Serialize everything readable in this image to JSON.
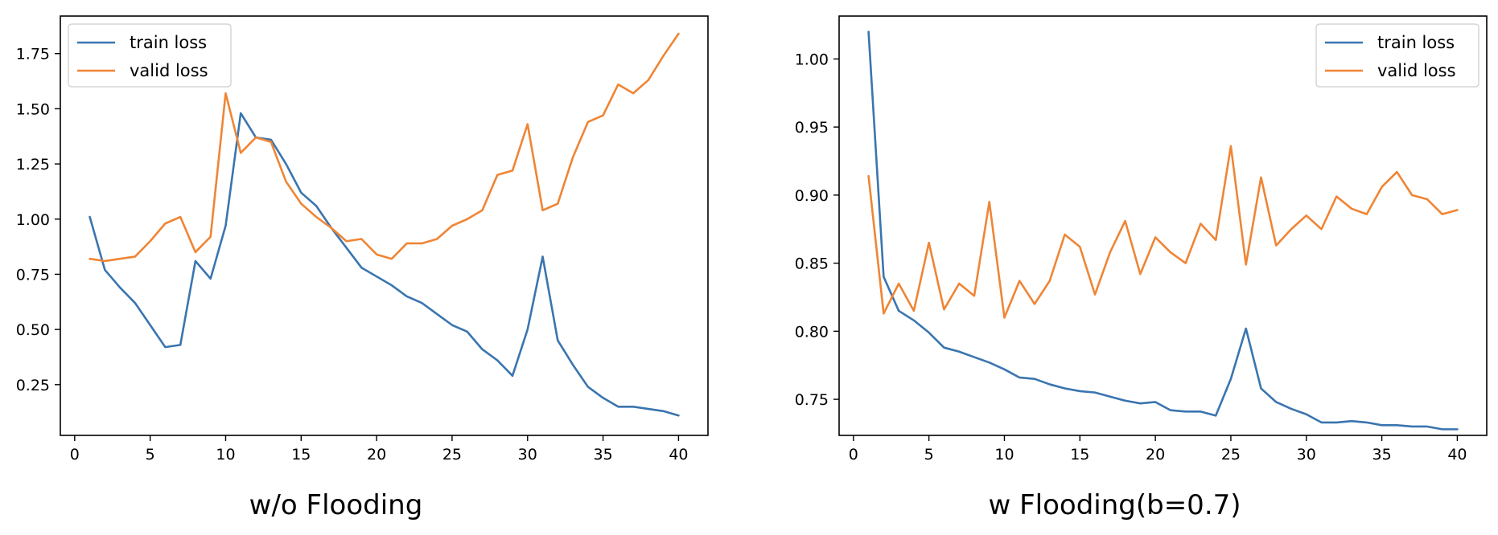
{
  "chart_data": [
    {
      "type": "line",
      "caption": "w/o Flooding",
      "x": [
        1,
        2,
        3,
        4,
        5,
        6,
        7,
        8,
        9,
        10,
        11,
        12,
        13,
        14,
        15,
        16,
        17,
        18,
        19,
        20,
        21,
        22,
        23,
        24,
        25,
        26,
        27,
        28,
        29,
        30,
        31,
        32,
        33,
        34,
        35,
        36,
        37,
        38,
        39,
        40
      ],
      "series": [
        {
          "name": "train loss",
          "color": "#3a75af",
          "values": [
            1.01,
            0.77,
            0.69,
            0.62,
            0.52,
            0.42,
            0.43,
            0.81,
            0.73,
            0.97,
            1.48,
            1.37,
            1.36,
            1.25,
            1.12,
            1.06,
            0.96,
            0.87,
            0.78,
            0.74,
            0.7,
            0.65,
            0.62,
            0.57,
            0.52,
            0.49,
            0.41,
            0.36,
            0.29,
            0.5,
            0.83,
            0.45,
            0.34,
            0.24,
            0.19,
            0.15,
            0.15,
            0.14,
            0.13,
            0.11
          ]
        },
        {
          "name": "valid loss",
          "color": "#ef8535",
          "values": [
            0.82,
            0.81,
            0.82,
            0.83,
            0.9,
            0.98,
            1.01,
            0.85,
            0.92,
            1.57,
            1.3,
            1.37,
            1.35,
            1.17,
            1.07,
            1.01,
            0.96,
            0.9,
            0.91,
            0.84,
            0.82,
            0.89,
            0.89,
            0.91,
            0.97,
            1.0,
            1.04,
            1.2,
            1.22,
            1.43,
            1.04,
            1.07,
            1.28,
            1.44,
            1.47,
            1.61,
            1.57,
            1.63,
            1.74,
            1.84
          ]
        }
      ],
      "xlim": [
        -0.95,
        41.95
      ],
      "ylim": [
        0.02,
        1.92
      ],
      "xticks": [
        0,
        5,
        10,
        15,
        20,
        25,
        30,
        35,
        40
      ],
      "xtick_labels": [
        "0",
        "5",
        "10",
        "15",
        "20",
        "25",
        "30",
        "35",
        "40"
      ],
      "yticks": [
        0.25,
        0.5,
        0.75,
        1.0,
        1.25,
        1.5,
        1.75
      ],
      "ytick_labels": [
        "0.25",
        "0.50",
        "0.75",
        "1.00",
        "1.25",
        "1.50",
        "1.75"
      ],
      "legend": "top-left",
      "grid": false
    },
    {
      "type": "line",
      "caption": "w Flooding(b=0.7)",
      "x": [
        1,
        2,
        3,
        4,
        5,
        6,
        7,
        8,
        9,
        10,
        11,
        12,
        13,
        14,
        15,
        16,
        17,
        18,
        19,
        20,
        21,
        22,
        23,
        24,
        25,
        26,
        27,
        28,
        29,
        30,
        31,
        32,
        33,
        34,
        35,
        36,
        37,
        38,
        39,
        40
      ],
      "series": [
        {
          "name": "train loss",
          "color": "#3a75af",
          "values": [
            1.02,
            0.84,
            0.815,
            0.808,
            0.799,
            0.788,
            0.785,
            0.781,
            0.777,
            0.772,
            0.766,
            0.765,
            0.761,
            0.758,
            0.756,
            0.755,
            0.752,
            0.749,
            0.747,
            0.748,
            0.742,
            0.741,
            0.741,
            0.738,
            0.765,
            0.802,
            0.758,
            0.748,
            0.743,
            0.739,
            0.733,
            0.733,
            0.734,
            0.733,
            0.731,
            0.731,
            0.73,
            0.73,
            0.728,
            0.728
          ]
        },
        {
          "name": "valid loss",
          "color": "#ef8535",
          "values": [
            0.914,
            0.813,
            0.835,
            0.815,
            0.865,
            0.816,
            0.835,
            0.826,
            0.895,
            0.81,
            0.837,
            0.82,
            0.837,
            0.871,
            0.862,
            0.827,
            0.858,
            0.881,
            0.842,
            0.869,
            0.858,
            0.85,
            0.879,
            0.867,
            0.936,
            0.849,
            0.913,
            0.863,
            0.875,
            0.885,
            0.875,
            0.899,
            0.89,
            0.886,
            0.906,
            0.917,
            0.9,
            0.897,
            0.886,
            0.889
          ]
        }
      ],
      "xlim": [
        -0.95,
        41.95
      ],
      "ylim": [
        0.7235,
        1.0315
      ],
      "xticks": [
        0,
        5,
        10,
        15,
        20,
        25,
        30,
        35,
        40
      ],
      "xtick_labels": [
        "0",
        "5",
        "10",
        "15",
        "20",
        "25",
        "30",
        "35",
        "40"
      ],
      "yticks": [
        0.75,
        0.8,
        0.85,
        0.9,
        0.95,
        1.0
      ],
      "ytick_labels": [
        "0.75",
        "0.80",
        "0.85",
        "0.90",
        "0.95",
        "1.00"
      ],
      "legend": "top-right",
      "grid": false
    }
  ]
}
